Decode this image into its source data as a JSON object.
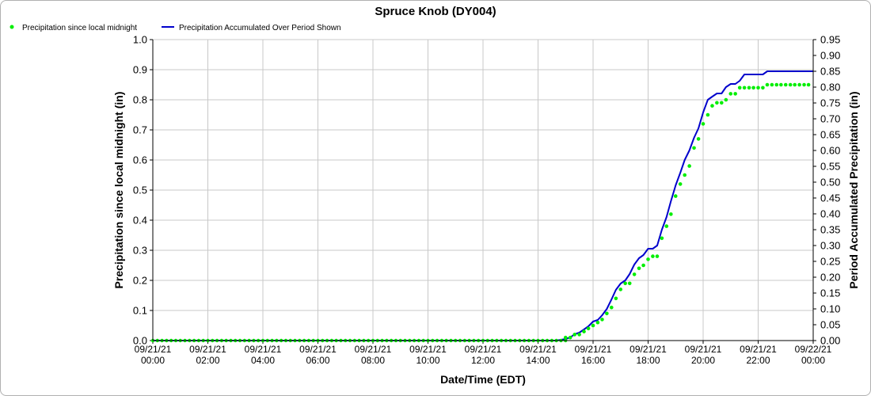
{
  "chart_data": {
    "type": "line",
    "title": "Spruce Knob (DY004)",
    "xlabel": "Date/Time (EDT)",
    "ylabel_left": "Precipitation since local midnight (in)",
    "ylabel_right": "Period Accumulated Precipitation (in)",
    "ylim_left": [
      0,
      1.0
    ],
    "ylim_right": [
      0,
      0.95
    ],
    "yticks_left": [
      "0.0",
      "0.1",
      "0.2",
      "0.3",
      "0.4",
      "0.5",
      "0.6",
      "0.7",
      "0.8",
      "0.9",
      "1.0"
    ],
    "yticks_right": [
      "0.00",
      "0.05",
      "0.10",
      "0.15",
      "0.20",
      "0.25",
      "0.30",
      "0.35",
      "0.40",
      "0.45",
      "0.50",
      "0.55",
      "0.60",
      "0.65",
      "0.70",
      "0.75",
      "0.80",
      "0.85",
      "0.90",
      "0.95"
    ],
    "xlim_hours": [
      0,
      24
    ],
    "xticks": [
      {
        "date": "09/21/21",
        "time": "00:00"
      },
      {
        "date": "09/21/21",
        "time": "02:00"
      },
      {
        "date": "09/21/21",
        "time": "04:00"
      },
      {
        "date": "09/21/21",
        "time": "06:00"
      },
      {
        "date": "09/21/21",
        "time": "08:00"
      },
      {
        "date": "09/21/21",
        "time": "10:00"
      },
      {
        "date": "09/21/21",
        "time": "12:00"
      },
      {
        "date": "09/21/21",
        "time": "14:00"
      },
      {
        "date": "09/21/21",
        "time": "16:00"
      },
      {
        "date": "09/21/21",
        "time": "18:00"
      },
      {
        "date": "09/21/21",
        "time": "20:00"
      },
      {
        "date": "09/21/21",
        "time": "22:00"
      },
      {
        "date": "09/22/21",
        "time": "00:00"
      }
    ],
    "grid": true,
    "legend": "top-left",
    "series": [
      {
        "name": "Precipitation since local midnight",
        "style": "points",
        "axis": "left",
        "color": "#00ee00",
        "x": [
          15.0,
          15.17,
          15.33,
          15.5,
          15.67,
          15.83,
          16.0,
          16.17,
          16.33,
          16.5,
          16.67,
          16.83,
          17.0,
          17.17,
          17.33,
          17.5,
          17.67,
          17.83,
          18.0,
          18.17,
          18.33,
          18.5,
          18.67,
          18.83,
          19.0,
          19.17,
          19.33,
          19.5,
          19.67,
          19.83,
          20.0,
          20.17,
          20.33,
          20.5,
          20.67,
          20.83,
          21.0,
          21.17,
          21.33,
          21.5,
          21.67,
          21.83,
          22.0,
          22.17,
          22.33,
          22.5,
          22.67,
          22.83,
          23.0,
          23.17,
          23.33,
          23.5,
          23.67,
          23.83
        ],
        "y": [
          0.01,
          0.01,
          0.02,
          0.02,
          0.03,
          0.04,
          0.05,
          0.06,
          0.07,
          0.09,
          0.11,
          0.14,
          0.17,
          0.19,
          0.19,
          0.22,
          0.24,
          0.25,
          0.27,
          0.28,
          0.28,
          0.34,
          0.38,
          0.42,
          0.48,
          0.52,
          0.55,
          0.58,
          0.64,
          0.67,
          0.72,
          0.75,
          0.78,
          0.79,
          0.79,
          0.8,
          0.82,
          0.82,
          0.84,
          0.84,
          0.84,
          0.84,
          0.84,
          0.84,
          0.85,
          0.85,
          0.85,
          0.85,
          0.85,
          0.85,
          0.85,
          0.85,
          0.85,
          0.85
        ]
      },
      {
        "name": "Precipitation Accumulated Over Period Shown",
        "style": "line",
        "axis": "right",
        "color": "#0000cc",
        "x": [
          0,
          14.67,
          15.0,
          15.17,
          15.33,
          15.5,
          15.67,
          15.83,
          16.0,
          16.17,
          16.33,
          16.5,
          16.67,
          16.83,
          17.0,
          17.17,
          17.33,
          17.5,
          17.67,
          17.83,
          18.0,
          18.17,
          18.33,
          18.5,
          18.67,
          18.83,
          19.0,
          19.17,
          19.33,
          19.5,
          19.67,
          19.83,
          20.0,
          20.17,
          20.33,
          20.5,
          20.67,
          20.83,
          21.0,
          21.17,
          21.33,
          21.5,
          21.67,
          21.83,
          22.0,
          22.17,
          22.33,
          22.5,
          22.67,
          23.0,
          23.33,
          23.67,
          24.0
        ],
        "y": [
          0,
          0,
          0.005,
          0.01,
          0.02,
          0.025,
          0.035,
          0.045,
          0.06,
          0.065,
          0.08,
          0.1,
          0.13,
          0.16,
          0.18,
          0.19,
          0.21,
          0.24,
          0.26,
          0.27,
          0.29,
          0.29,
          0.3,
          0.35,
          0.39,
          0.44,
          0.49,
          0.53,
          0.57,
          0.6,
          0.64,
          0.67,
          0.72,
          0.76,
          0.77,
          0.78,
          0.78,
          0.8,
          0.81,
          0.81,
          0.82,
          0.84,
          0.84,
          0.84,
          0.84,
          0.84,
          0.85,
          0.85,
          0.85,
          0.85,
          0.85,
          0.85,
          0.85
        ]
      }
    ]
  }
}
